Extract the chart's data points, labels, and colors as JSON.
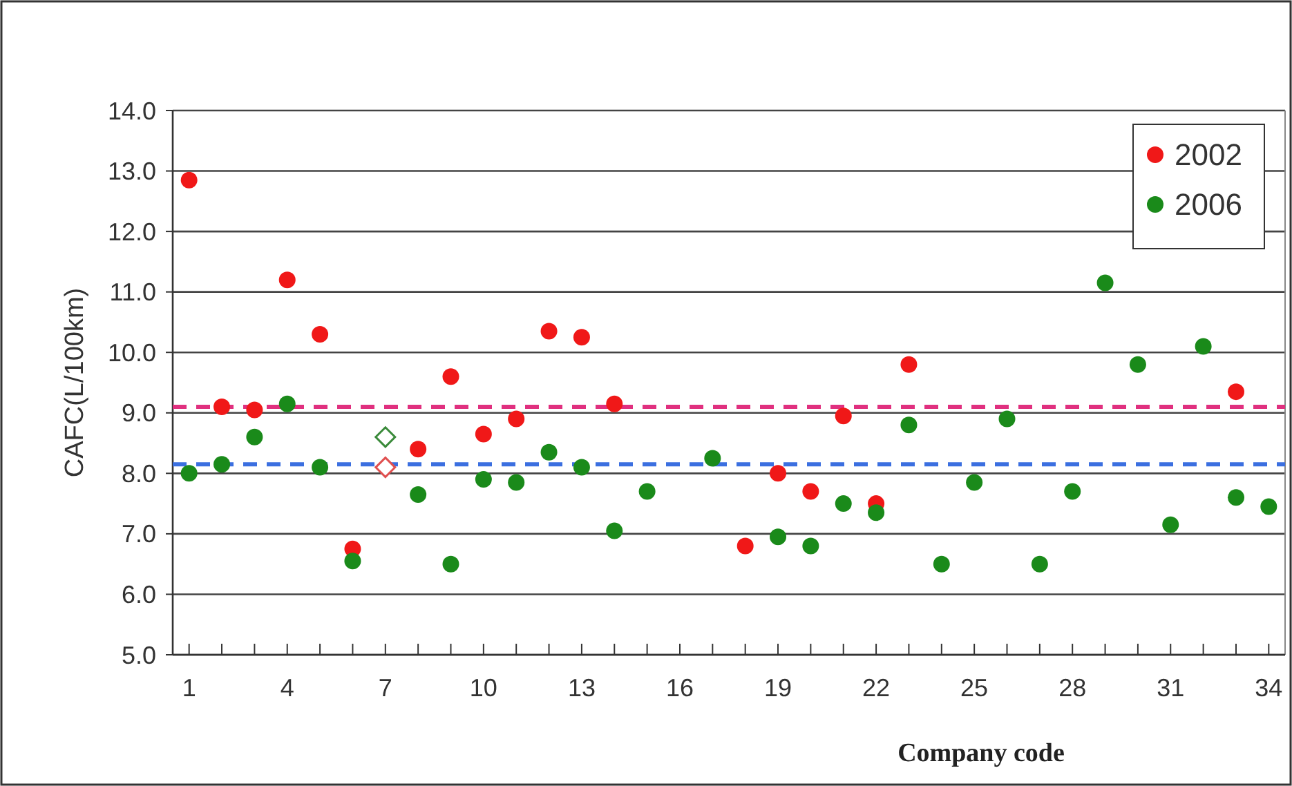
{
  "chart_data": {
    "type": "scatter",
    "ylabel": "CAFC(L/100km)",
    "xlabel": "Company code",
    "x": [
      1,
      2,
      3,
      4,
      5,
      6,
      7,
      8,
      9,
      10,
      11,
      12,
      13,
      14,
      15,
      16,
      17,
      18,
      19,
      20,
      21,
      22,
      23,
      24,
      25,
      26,
      27,
      28,
      29,
      30,
      31,
      32,
      33,
      34
    ],
    "xlim": [
      0.5,
      34.5
    ],
    "xticks": [
      1,
      {
        "value": 2,
        "label": null
      },
      {
        "value": 3,
        "label": null
      },
      4,
      {
        "value": 5,
        "label": null
      },
      {
        "value": 6,
        "label": null
      },
      7,
      {
        "value": 8,
        "label": null
      },
      {
        "value": 9,
        "label": null
      },
      10,
      {
        "value": 11,
        "label": null
      },
      {
        "value": 12,
        "label": null
      },
      13,
      {
        "value": 14,
        "label": null
      },
      {
        "value": 15,
        "label": null
      },
      16,
      {
        "value": 17,
        "label": null
      },
      {
        "value": 18,
        "label": null
      },
      19,
      {
        "value": 20,
        "label": null
      },
      {
        "value": 21,
        "label": null
      },
      22,
      {
        "value": 23,
        "label": null
      },
      {
        "value": 24,
        "label": null
      },
      25,
      {
        "value": 26,
        "label": null
      },
      {
        "value": 27,
        "label": null
      },
      28,
      {
        "value": 29,
        "label": null
      },
      {
        "value": 30,
        "label": null
      },
      31,
      {
        "value": 32,
        "label": null
      },
      {
        "value": 33,
        "label": null
      },
      34
    ],
    "ylim": [
      5,
      14
    ],
    "yticks": [
      {
        "value": 5,
        "label": "5.0"
      },
      {
        "value": 6,
        "label": "6.0"
      },
      {
        "value": 7,
        "label": "7.0"
      },
      {
        "value": 8,
        "label": "8.0"
      },
      {
        "value": 9,
        "label": "9.0"
      },
      {
        "value": 10,
        "label": "10.0"
      },
      {
        "value": 11,
        "label": "11.0"
      },
      {
        "value": 12,
        "label": "12.0"
      },
      {
        "value": 13,
        "label": "13.0"
      },
      {
        "value": 14,
        "label": "14.0"
      }
    ],
    "grid": "y",
    "legend": "top right",
    "marker": "circle",
    "series": [
      {
        "name": "2002",
        "color": "#f01818",
        "values": [
          12.85,
          9.1,
          9.05,
          11.2,
          10.3,
          6.75,
          null,
          8.4,
          9.6,
          8.65,
          8.9,
          10.35,
          10.25,
          9.15,
          null,
          null,
          null,
          6.8,
          8.0,
          7.7,
          8.95,
          7.5,
          9.8,
          null,
          null,
          null,
          null,
          null,
          null,
          null,
          null,
          null,
          9.35,
          null
        ]
      },
      {
        "name": "2006",
        "color": "#1a8a1a",
        "values": [
          8.0,
          8.15,
          8.6,
          9.15,
          8.1,
          6.55,
          null,
          7.65,
          6.5,
          7.9,
          7.85,
          8.35,
          8.1,
          7.05,
          7.7,
          null,
          8.25,
          null,
          6.95,
          6.8,
          7.5,
          7.35,
          8.8,
          6.5,
          7.85,
          8.9,
          6.5,
          7.7,
          11.15,
          9.8,
          7.15,
          10.1,
          7.6,
          7.45
        ]
      },
      {
        "color": "#e05050",
        "marker": "diamond",
        "x": [
          7
        ],
        "values": [
          8.1
        ]
      },
      {
        "color": "#3a8a3a",
        "marker": "diamond",
        "x": [
          7
        ],
        "values": [
          8.6
        ]
      }
    ],
    "ref_lines": [
      {
        "axis": "y",
        "value": 9.1,
        "color": "#e0307f",
        "line_style": "dashed"
      },
      {
        "axis": "y",
        "value": 8.15,
        "color": "#3b6fe0",
        "line_style": "dashed"
      }
    ]
  }
}
